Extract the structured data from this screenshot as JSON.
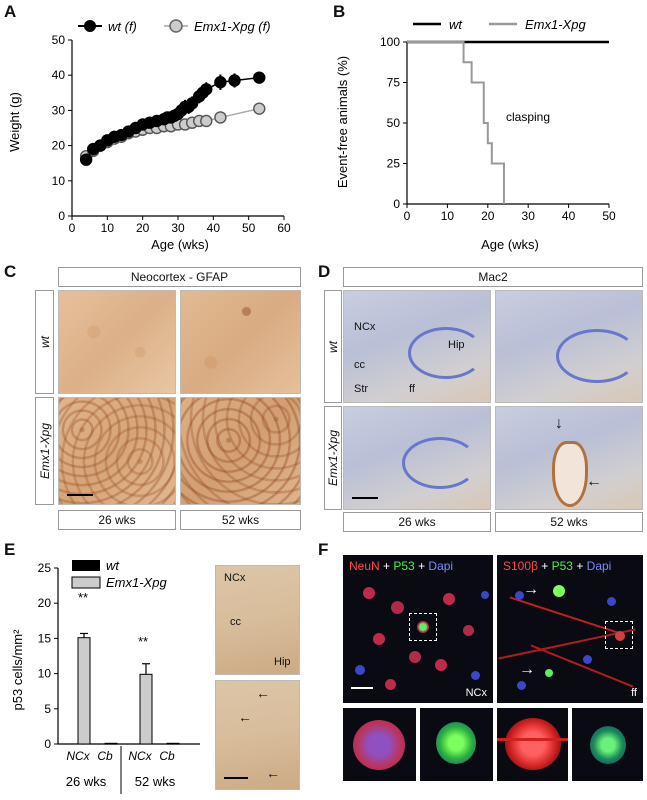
{
  "panels": {
    "A": {
      "label": "A",
      "legend": [
        {
          "name": "wt (f)",
          "color": "#000000"
        },
        {
          "name": "Emx1-Xpg (f)",
          "color": "#cccccc"
        }
      ],
      "ylabel": "Weight (g)",
      "xlabel": "Age (wks)"
    },
    "B": {
      "label": "B",
      "legend": [
        {
          "name": "wt",
          "color": "#000000"
        },
        {
          "name": "Emx1-Xpg",
          "color": "#999999"
        }
      ],
      "ylabel": "Event-free animals (%)",
      "xlabel": "Age (wks)",
      "annotation": "clasping"
    },
    "C": {
      "label": "C",
      "title": "Neocortex - GFAP",
      "rows": [
        "wt",
        "Emx1-Xpg"
      ],
      "cols": [
        "26 wks",
        "52 wks"
      ]
    },
    "D": {
      "label": "D",
      "title": "Mac2",
      "rows": [
        "wt",
        "Emx1-Xpg"
      ],
      "cols": [
        "26 wks",
        "52 wks"
      ],
      "region_labels": {
        "ncx": "NCx",
        "hip": "Hip",
        "cc": "cc",
        "str": "Str",
        "ff": "ff"
      }
    },
    "E": {
      "label": "E",
      "legend": [
        {
          "name": "wt",
          "color": "#000000"
        },
        {
          "name": "Emx1-Xpg",
          "color": "#cccccc"
        }
      ],
      "ylabel": "p53 cells/mm²",
      "groups": [
        "26 wks",
        "52 wks"
      ],
      "significance": [
        "**",
        "**"
      ],
      "image_labels": {
        "ncx": "NCx",
        "cc": "cc",
        "hip": "Hip"
      }
    },
    "F": {
      "label": "F",
      "left_title": {
        "a": "NeuN",
        "plus1": " + ",
        "b": "P53",
        "plus2": " + ",
        "c": "Dapi"
      },
      "right_title": {
        "a": "S100β",
        "plus1": " + ",
        "b": "P53",
        "plus2": " + ",
        "c": "Dapi"
      },
      "left_region": "NCx",
      "right_region": "ff"
    }
  },
  "chart_data": [
    {
      "type": "scatter",
      "panel": "A",
      "xlabel": "Age (wks)",
      "ylabel": "Weight (g)",
      "xlim": [
        0,
        60
      ],
      "ylim": [
        0,
        50
      ],
      "xticks": [
        0,
        10,
        20,
        30,
        40,
        50,
        60
      ],
      "yticks": [
        0,
        10,
        20,
        30,
        40,
        50
      ],
      "series": [
        {
          "name": "wt (f)",
          "color": "#000000",
          "x": [
            4,
            6,
            8,
            10,
            12,
            14,
            16,
            18,
            20,
            22,
            24,
            26,
            27,
            28,
            29,
            30,
            31,
            32,
            33,
            34,
            36,
            37,
            38,
            42,
            46,
            53
          ],
          "y": [
            16,
            19,
            20,
            21.5,
            22.5,
            23,
            24,
            25,
            26,
            26.5,
            27,
            27.5,
            28,
            28,
            28.5,
            29,
            30,
            31,
            31,
            32,
            34,
            35,
            36,
            38,
            38.5,
            39.3
          ],
          "err": [
            0.5,
            0.5,
            0.5,
            0.6,
            0.6,
            0.6,
            0.6,
            0.7,
            0.7,
            0.8,
            0.8,
            1,
            1,
            1.2,
            1.2,
            1.5,
            1.5,
            2,
            2,
            2,
            2,
            2,
            2,
            2.2,
            2,
            1
          ]
        },
        {
          "name": "Emx1-Xpg (f)",
          "color": "#cccccc",
          "x": [
            4,
            6,
            8,
            10,
            12,
            14,
            16,
            18,
            20,
            22,
            24,
            26,
            28,
            30,
            32,
            34,
            36,
            38,
            42,
            53
          ],
          "y": [
            17,
            18.5,
            20,
            21,
            22,
            22.5,
            23.5,
            24,
            24.5,
            25,
            25,
            25.5,
            25.5,
            26,
            26,
            26.5,
            27,
            27,
            28,
            30.5
          ],
          "err": [
            0.5,
            0.5,
            0.5,
            0.5,
            0.5,
            0.5,
            0.6,
            0.6,
            0.6,
            0.6,
            0.7,
            0.7,
            0.7,
            0.8,
            0.8,
            0.8,
            0.9,
            0.9,
            1,
            1
          ]
        }
      ]
    },
    {
      "type": "line",
      "panel": "B",
      "xlabel": "Age (wks)",
      "ylabel": "Event-free animals (%)",
      "xlim": [
        0,
        50
      ],
      "ylim": [
        0,
        100
      ],
      "xticks": [
        0,
        10,
        20,
        30,
        40,
        50
      ],
      "yticks": [
        0,
        25,
        50,
        75,
        100
      ],
      "series": [
        {
          "name": "wt",
          "color": "#000000",
          "step": true,
          "x": [
            0,
            50
          ],
          "y": [
            100,
            100
          ]
        },
        {
          "name": "Emx1-Xpg",
          "color": "#999999",
          "step": true,
          "x": [
            0,
            14,
            16,
            19,
            20,
            21,
            23,
            24
          ],
          "y": [
            100,
            87.5,
            75,
            50,
            37.5,
            25,
            25,
            0
          ]
        }
      ]
    },
    {
      "type": "bar",
      "panel": "E",
      "ylabel": "p53 cells/mm²",
      "ylim": [
        0,
        25
      ],
      "yticks": [
        0,
        5,
        10,
        15,
        20,
        25
      ],
      "categories": [
        "NCx",
        "Cb",
        "NCx",
        "Cb"
      ],
      "groups": [
        "26 wks",
        "52 wks"
      ],
      "series": [
        {
          "name": "wt",
          "color": "#000000",
          "values": [
            0,
            0,
            0,
            0
          ]
        },
        {
          "name": "Emx1-Xpg",
          "color": "#cccccc",
          "values": [
            15.1,
            0.1,
            9.9,
            0.1
          ],
          "err": [
            0.6,
            0,
            1.5,
            0
          ]
        }
      ]
    }
  ]
}
